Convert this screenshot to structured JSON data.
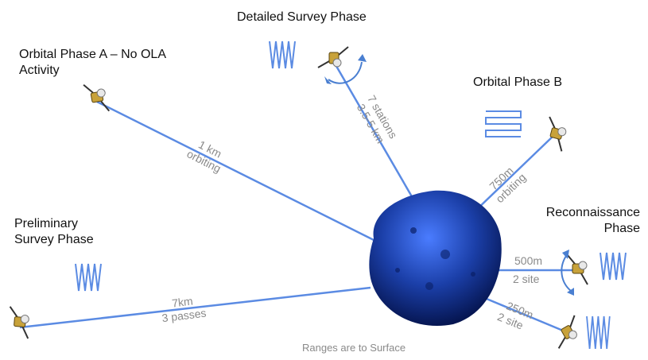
{
  "phases": {
    "orbital_a": {
      "title_line1": "Orbital Phase A – No OLA",
      "title_line2": "Activity",
      "range": "1 km",
      "mode": "orbiting"
    },
    "detailed": {
      "title": "Detailed Survey Phase",
      "range": "3.5-5 km",
      "mode": "7 stations"
    },
    "orbital_b": {
      "title": "Orbital Phase B",
      "range": "750m",
      "mode": "orbiting"
    },
    "preliminary": {
      "title_line1": "Preliminary",
      "title_line2": "Survey Phase",
      "range": "7km",
      "mode": "3 passes"
    },
    "recon": {
      "title_line1": "Reconnaissance",
      "title_line2": "Phase",
      "range1": "500m",
      "mode1": "2 site",
      "range2": "250m",
      "mode2": "2 site"
    }
  },
  "footnote": "Ranges are to Surface",
  "colors": {
    "line": "#5b8be3",
    "zigzag": "#5b8be3",
    "asteroid": "#1b3fa8",
    "label": "#8a8a8a"
  },
  "icons": [
    "spacecraft-icon",
    "zigzag-pattern-icon",
    "raster-pattern-icon",
    "rotation-arrow-icon",
    "asteroid-icon"
  ]
}
